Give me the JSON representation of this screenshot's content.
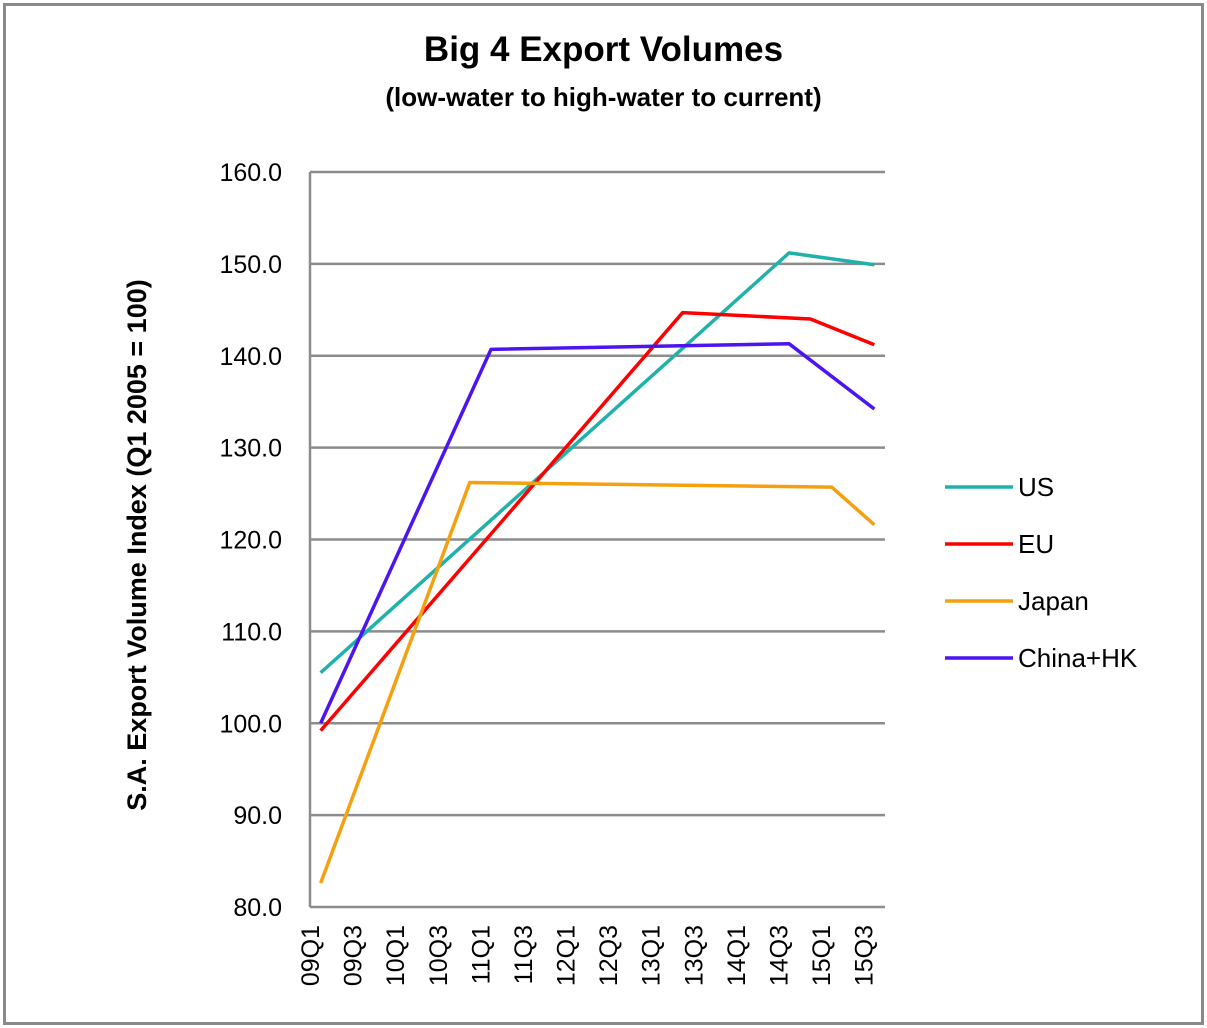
{
  "chart_data": {
    "type": "line",
    "title": "Big 4 Export Volumes",
    "subtitle": "(low-water to high-water to current)",
    "xlabel": "",
    "ylabel": "S.A. Export Volume Index (Q1 2005 = 100)",
    "ylim": [
      80,
      160
    ],
    "yticks": [
      "80.0",
      "90.0",
      "100.0",
      "110.0",
      "120.0",
      "130.0",
      "140.0",
      "150.0",
      "160.0"
    ],
    "x": [
      "09Q1",
      "09Q2",
      "09Q3",
      "09Q4",
      "10Q1",
      "10Q2",
      "10Q3",
      "10Q4",
      "11Q1",
      "11Q2",
      "11Q3",
      "11Q4",
      "12Q1",
      "12Q2",
      "12Q3",
      "12Q4",
      "13Q1",
      "13Q2",
      "13Q3",
      "13Q4",
      "14Q1",
      "14Q2",
      "14Q3",
      "14Q4",
      "15Q1",
      "15Q2",
      "15Q3"
    ],
    "xtick_labels": [
      "09Q1",
      "09Q3",
      "10Q1",
      "10Q3",
      "11Q1",
      "11Q3",
      "12Q1",
      "12Q3",
      "13Q1",
      "13Q3",
      "14Q1",
      "14Q3",
      "15Q1",
      "15Q3"
    ],
    "grid": "horizontal",
    "legend_position": "right",
    "series": [
      {
        "name": "US",
        "color": "#20b2aa",
        "points": [
          [
            "09Q1",
            105.5
          ],
          [
            "14Q3",
            151.2
          ],
          [
            "15Q3",
            149.9
          ]
        ]
      },
      {
        "name": "EU",
        "color": "#ff0000",
        "points": [
          [
            "09Q1",
            99.2
          ],
          [
            "13Q2",
            144.7
          ],
          [
            "14Q4",
            144.0
          ],
          [
            "15Q3",
            141.2
          ]
        ]
      },
      {
        "name": "Japan",
        "color": "#f5a00f",
        "points": [
          [
            "09Q1",
            82.6
          ],
          [
            "10Q4",
            126.2
          ],
          [
            "15Q1",
            125.7
          ],
          [
            "15Q3",
            121.6
          ]
        ]
      },
      {
        "name": "China+HK",
        "color": "#4b14f0",
        "points": [
          [
            "09Q1",
            100.0
          ],
          [
            "11Q1",
            140.7
          ],
          [
            "14Q3",
            141.3
          ],
          [
            "15Q3",
            134.2
          ]
        ]
      }
    ]
  }
}
